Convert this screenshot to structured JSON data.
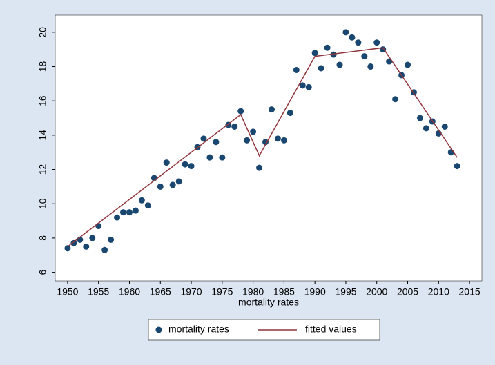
{
  "chart_data": {
    "type": "scatter_line",
    "x_label": "mortality rates",
    "xlim": [
      1948,
      2017
    ],
    "ylim": [
      5.5,
      21
    ],
    "xticks": [
      1950,
      1955,
      1960,
      1965,
      1970,
      1975,
      1980,
      1985,
      1990,
      1995,
      2000,
      2005,
      2010,
      2015
    ],
    "yticks": [
      6,
      8,
      10,
      12,
      14,
      16,
      18,
      20
    ],
    "legend": "bottom",
    "series": [
      {
        "name": "mortality rates",
        "type": "scatter",
        "color": "#1a476f",
        "x": [
          1950,
          1951,
          1952,
          1953,
          1954,
          1955,
          1956,
          1957,
          1958,
          1959,
          1960,
          1961,
          1962,
          1963,
          1964,
          1965,
          1966,
          1967,
          1968,
          1969,
          1970,
          1971,
          1972,
          1973,
          1974,
          1975,
          1976,
          1977,
          1978,
          1979,
          1980,
          1981,
          1982,
          1983,
          1984,
          1985,
          1986,
          1987,
          1988,
          1989,
          1990,
          1991,
          1992,
          1993,
          1994,
          1995,
          1996,
          1997,
          1998,
          1999,
          2000,
          2001,
          2002,
          2003,
          2004,
          2005,
          2006,
          2007,
          2008,
          2009,
          2010,
          2011,
          2012,
          2013
        ],
        "values": [
          7.4,
          7.7,
          7.9,
          7.5,
          8.0,
          8.7,
          7.3,
          7.9,
          9.2,
          9.5,
          9.5,
          9.6,
          10.2,
          9.9,
          11.5,
          11.0,
          12.4,
          11.1,
          11.3,
          12.3,
          12.2,
          13.3,
          13.8,
          12.7,
          13.6,
          12.7,
          14.6,
          14.5,
          15.4,
          13.7,
          14.2,
          12.1,
          13.6,
          15.5,
          13.8,
          13.7,
          15.3,
          17.8,
          16.9,
          16.8,
          18.8,
          17.9,
          19.1,
          18.7,
          18.1,
          20.0,
          19.7,
          19.4,
          18.6,
          18.0,
          19.4,
          19.0,
          18.3,
          16.1,
          17.5,
          18.1,
          16.5,
          15.0,
          14.4,
          14.8,
          14.1,
          14.5,
          13.0,
          12.2
        ]
      },
      {
        "name": "fitted values",
        "type": "line",
        "color": "#90353b",
        "x": [
          1950,
          1978,
          1981,
          1990,
          2001,
          2013
        ],
        "values": [
          7.5,
          15.2,
          12.8,
          18.6,
          19.1,
          12.7
        ]
      }
    ]
  }
}
